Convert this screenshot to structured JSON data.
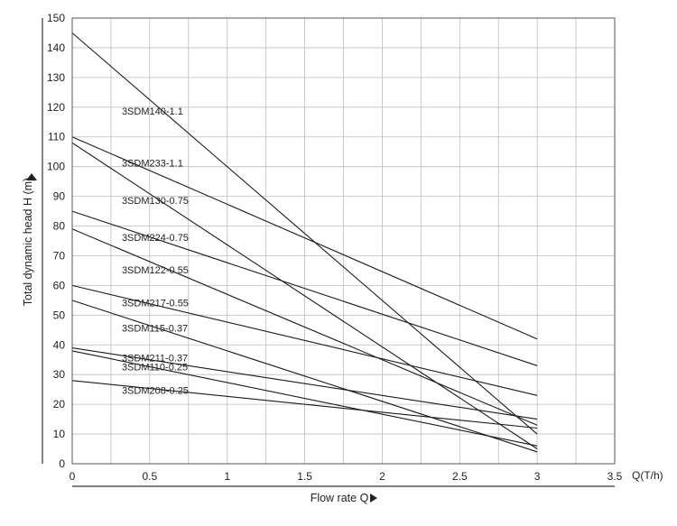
{
  "chart_data": {
    "type": "line",
    "xlabel": "Flow rate Q",
    "ylabel": "Total dynamic head H (m)",
    "x_unit_label": "Q(T/h)",
    "xlim": [
      0,
      3.5
    ],
    "ylim": [
      0,
      150
    ],
    "x_ticks": [
      0,
      0.5,
      1,
      1.5,
      2,
      2.5,
      3,
      3.5
    ],
    "x_tick_labels": [
      "0",
      "0.5",
      "1",
      "1.5",
      "2",
      "2.5",
      "3",
      "3.5"
    ],
    "y_ticks": [
      0,
      10,
      20,
      30,
      40,
      50,
      60,
      70,
      80,
      90,
      100,
      110,
      120,
      130,
      140,
      150
    ],
    "y_tick_labels": [
      "0",
      "10",
      "20",
      "30",
      "40",
      "50",
      "60",
      "70",
      "80",
      "90",
      "100",
      "110",
      "120",
      "130",
      "140",
      "150"
    ],
    "grid": true,
    "series": [
      {
        "name": "3SDM140-1.1",
        "x": [
          0,
          3
        ],
        "y": [
          145,
          10
        ],
        "label_x": 0.32,
        "label_y": 117.5
      },
      {
        "name": "3SDM233-1.1",
        "x": [
          0,
          3
        ],
        "y": [
          110,
          42
        ],
        "label_x": 0.32,
        "label_y": 100
      },
      {
        "name": "3SDM130-0.75",
        "x": [
          0,
          3
        ],
        "y": [
          108,
          5
        ],
        "label_x": 0.32,
        "label_y": 87.5
      },
      {
        "name": "3SDM224-0.75",
        "x": [
          0,
          3
        ],
        "y": [
          85,
          33
        ],
        "label_x": 0.32,
        "label_y": 75
      },
      {
        "name": "3SDM122-0.55",
        "x": [
          0,
          3
        ],
        "y": [
          79,
          13
        ],
        "label_x": 0.32,
        "label_y": 64
      },
      {
        "name": "3SDM217-0.55",
        "x": [
          0,
          3
        ],
        "y": [
          60,
          23
        ],
        "label_x": 0.32,
        "label_y": 53
      },
      {
        "name": "3SDM115-0.37",
        "x": [
          0,
          3
        ],
        "y": [
          55,
          4
        ],
        "label_x": 0.32,
        "label_y": 44.5
      },
      {
        "name": "3SDM211-0.37",
        "x": [
          0,
          3
        ],
        "y": [
          39,
          15
        ],
        "label_x": 0.32,
        "label_y": 34.5
      },
      {
        "name": "3SDM110-0.25",
        "x": [
          0,
          3
        ],
        "y": [
          38,
          6
        ],
        "label_x": 0.32,
        "label_y": 31.5
      },
      {
        "name": "3SDM208-0.25",
        "x": [
          0,
          3
        ],
        "y": [
          28,
          12
        ],
        "label_x": 0.32,
        "label_y": 23.5
      }
    ]
  }
}
